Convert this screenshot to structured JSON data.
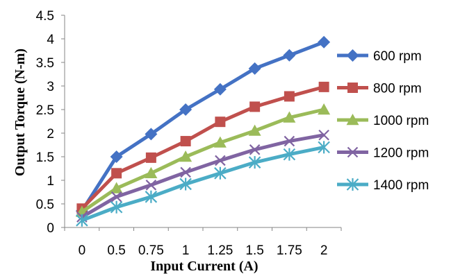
{
  "chart_data": {
    "type": "line",
    "title": "",
    "xlabel": "Input Current (A)",
    "ylabel": "Output Torque (N-m)",
    "categories": [
      "0",
      "0.5",
      "0.75",
      "1",
      "1.25",
      "1.5",
      "1.75",
      "2"
    ],
    "ylim": [
      0,
      4.5
    ],
    "yticks": [
      "0",
      "0.5",
      "1",
      "1.5",
      "2",
      "2.5",
      "3",
      "3.5",
      "4",
      "4.5"
    ],
    "grid": false,
    "legend_position": "right",
    "series": [
      {
        "name": "600 rpm",
        "color": "#4472C4",
        "marker": "diamond",
        "values": [
          0.35,
          1.5,
          1.98,
          2.5,
          2.93,
          3.37,
          3.65,
          3.93
        ]
      },
      {
        "name": "800 rpm",
        "color": "#C0504D",
        "marker": "square",
        "values": [
          0.4,
          1.15,
          1.48,
          1.83,
          2.24,
          2.56,
          2.78,
          2.98
        ]
      },
      {
        "name": "1000 rpm",
        "color": "#9BBB59",
        "marker": "triangle",
        "values": [
          0.33,
          0.83,
          1.15,
          1.5,
          1.8,
          2.05,
          2.33,
          2.5
        ]
      },
      {
        "name": "1200 rpm",
        "color": "#8064A2",
        "marker": "x",
        "values": [
          0.22,
          0.65,
          0.9,
          1.17,
          1.42,
          1.65,
          1.83,
          1.96
        ]
      },
      {
        "name": "1400 rpm",
        "color": "#4BACC6",
        "marker": "star",
        "values": [
          0.15,
          0.43,
          0.65,
          0.92,
          1.15,
          1.38,
          1.55,
          1.7
        ]
      }
    ]
  }
}
